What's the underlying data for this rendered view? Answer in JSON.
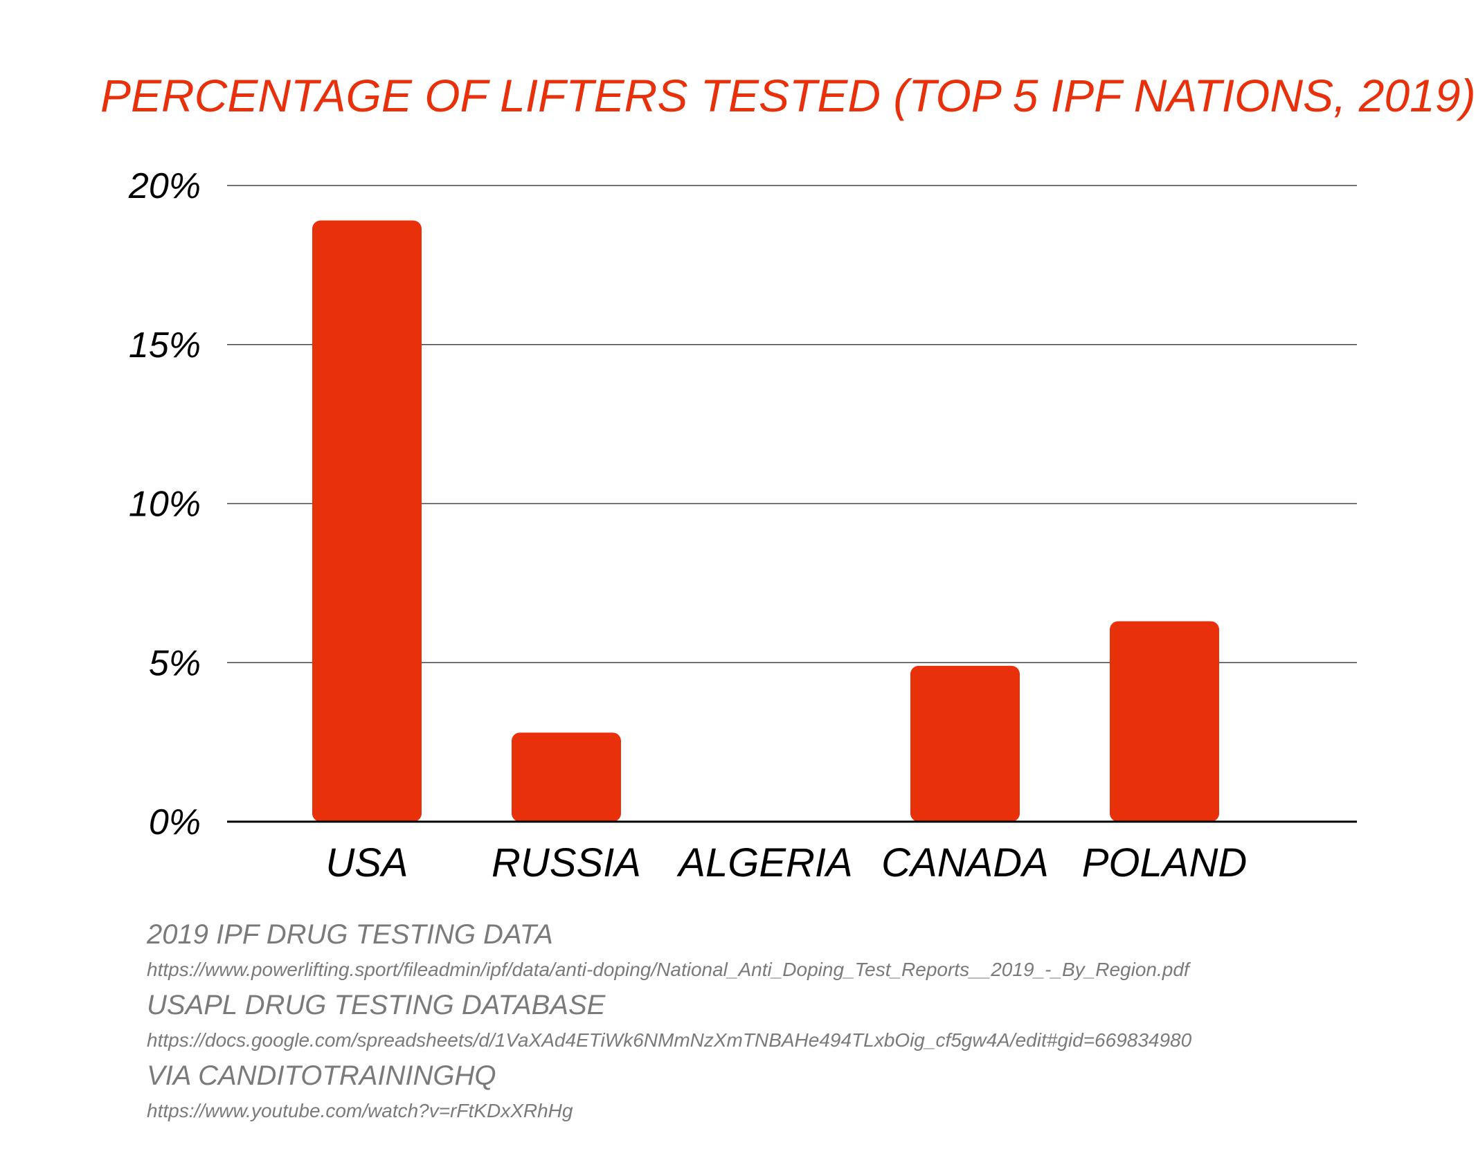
{
  "colors": {
    "accent": "#e8300a",
    "bar": "#e8300a",
    "gridline": "#444444",
    "baseline": "#000000",
    "source_text": "#7a7a7a"
  },
  "chart_data": {
    "type": "bar",
    "title": "PERCENTAGE OF LIFTERS TESTED (TOP 5 IPF NATIONS, 2019)",
    "categories": [
      "USA",
      "RUSSIA",
      "ALGERIA",
      "CANADA",
      "POLAND"
    ],
    "values": [
      18.9,
      2.8,
      0,
      4.9,
      6.3
    ],
    "unit": "%",
    "ylim": [
      0,
      20
    ],
    "yticks": [
      0,
      5,
      10,
      15,
      20
    ],
    "ytick_labels": [
      "0%",
      "5%",
      "10%",
      "15%",
      "20%"
    ],
    "grid": true,
    "xlabel": "",
    "ylabel": ""
  },
  "sources": [
    {
      "title": "2019 IPF DRUG TESTING DATA",
      "url": "https://www.powerlifting.sport/fileadmin/ipf/data/anti-doping/National_Anti_Doping_Test_Reports__2019_-_By_Region.pdf"
    },
    {
      "title": "USAPL DRUG TESTING DATABASE",
      "url": "https://docs.google.com/spreadsheets/d/1VaXAd4ETiWk6NMmNzXmTNBAHe494TLxbOig_cf5gw4A/edit#gid=669834980"
    },
    {
      "title": "VIA CANDITOTRAININGHQ",
      "url": "https://www.youtube.com/watch?v=rFtKDxXRhHg"
    }
  ]
}
